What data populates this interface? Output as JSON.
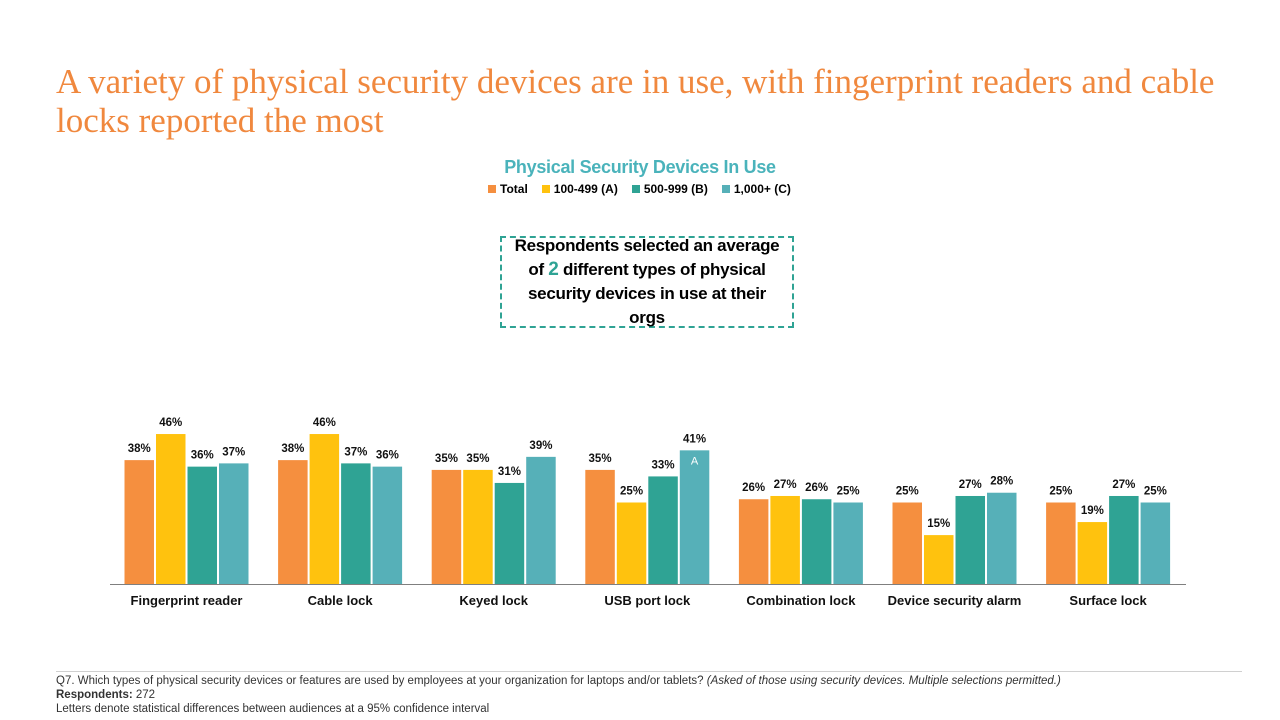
{
  "headline": "A variety of physical security devices are in use, with fingerprint readers and cable locks reported the most",
  "callout": {
    "before": "Respondents selected an average of ",
    "number": "2",
    "after": " different types of physical security devices in use at their orgs"
  },
  "footer": {
    "question": "Q7. Which types of physical security devices or features are used by employees at your organization for laptops and/or tablets? ",
    "note": "(Asked of those using security devices. Multiple selections permitted.)",
    "respondents_label": "Respondents:",
    "respondents_value": "272",
    "line2": "Letters denote statistical differences between audiences at a 95% confidence interval"
  },
  "chart_data": {
    "type": "bar",
    "title": "Physical Security Devices In Use",
    "legend_position": "top-center",
    "grid": false,
    "ylim": [
      0,
      50
    ],
    "categories": [
      "Fingerprint reader",
      "Cable lock",
      "Keyed lock",
      "USB port lock",
      "Combination lock",
      "Device security alarm",
      "Surface lock"
    ],
    "series": [
      {
        "name": "Total",
        "color": "#f58f3f",
        "values": [
          38,
          38,
          35,
          35,
          26,
          25,
          25
        ]
      },
      {
        "name": "100-499 (A)",
        "color": "#ffc20e",
        "values": [
          46,
          46,
          35,
          25,
          27,
          15,
          19
        ]
      },
      {
        "name": "500-999 (B)",
        "color": "#2fa394",
        "values": [
          36,
          37,
          31,
          33,
          26,
          27,
          27
        ]
      },
      {
        "name": "1,000+ (C)",
        "color": "#56b0b8",
        "values": [
          37,
          36,
          39,
          41,
          25,
          28,
          25
        ]
      }
    ],
    "value_suffix": "%",
    "significance_markers": [
      {
        "category": "USB port lock",
        "series": "1,000+ (C)",
        "letter": "A"
      }
    ]
  }
}
